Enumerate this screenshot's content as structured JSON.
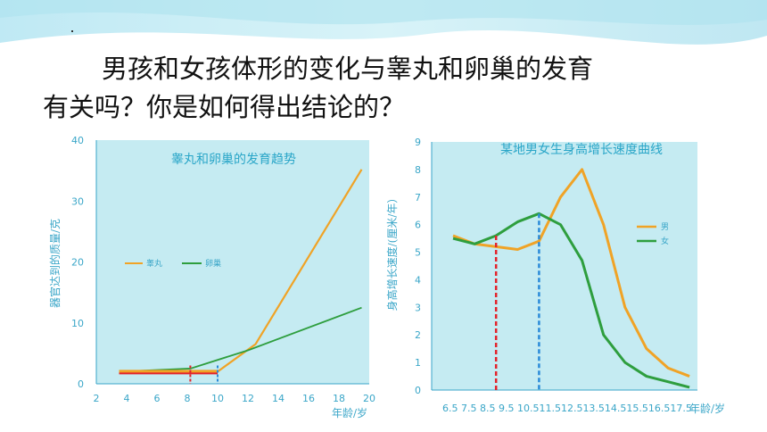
{
  "question": {
    "line1": "男孩和女孩体形的变化与睾丸和卵巢的发育",
    "line2": "有关吗？你是如何得出结论的？"
  },
  "colors": {
    "orange": "#f0a326",
    "green": "#2e9e3e",
    "red": "#e3232b",
    "blue": "#2a8ad8",
    "axis": "#3aa6c8"
  },
  "chart_data": [
    {
      "type": "line",
      "title": "睾丸和卵巢的发育趋势",
      "ylabel": "器官达到的质量/克",
      "xlabel": "年龄/岁",
      "xlim": [
        2,
        20
      ],
      "ylim": [
        0,
        40
      ],
      "xticks": [
        "2",
        "4",
        "6",
        "8",
        "10",
        "12",
        "14",
        "16",
        "18",
        "20"
      ],
      "yticks": [
        "0",
        "10",
        "20",
        "30",
        "40"
      ],
      "legend": "middle-left",
      "series": [
        {
          "name": "睾丸",
          "x": [
            3.5,
            8,
            10,
            12.5,
            19.5
          ],
          "y": [
            2,
            2,
            2,
            6.5,
            35.2
          ]
        },
        {
          "name": "卵巢",
          "x": [
            3.5,
            8.2,
            12,
            19.5
          ],
          "y": [
            2,
            2.5,
            5.5,
            12.5
          ]
        }
      ],
      "markers": [
        {
          "x": 8.2,
          "color": "red"
        },
        {
          "x": 10,
          "color": "blue"
        }
      ]
    },
    {
      "type": "line",
      "title": "某地男女生身高增长速度曲线",
      "ylabel": "身高增长速度/(厘米/年）",
      "xlabel": "年龄/岁",
      "ylim": [
        0,
        9
      ],
      "categories": [
        "6.5",
        "7.5",
        "8.5",
        "9.5",
        "10.5",
        "11.5",
        "12.5",
        "13.5",
        "14.5",
        "15.5",
        "16.5",
        "17.5"
      ],
      "xtick_text": "6.5  7.5  8.5  9.5  10.511.512.513.514.515.516.517.5",
      "yticks": [
        "0",
        "1",
        "2",
        "3",
        "4",
        "5",
        "6",
        "7",
        "8",
        "9"
      ],
      "legend": "middle-right",
      "series": [
        {
          "name": "男",
          "values": [
            5.6,
            5.3,
            5.2,
            5.1,
            5.4,
            7.0,
            8.0,
            6.0,
            3.0,
            1.5,
            0.8,
            0.5
          ]
        },
        {
          "name": "女",
          "values": [
            5.5,
            5.3,
            5.6,
            6.1,
            6.4,
            6.0,
            4.7,
            2.0,
            1.0,
            0.5,
            0.3,
            0.1
          ]
        }
      ],
      "markers": [
        {
          "x": "8.5",
          "color": "red"
        },
        {
          "x": "10.5",
          "color": "blue"
        }
      ]
    }
  ]
}
